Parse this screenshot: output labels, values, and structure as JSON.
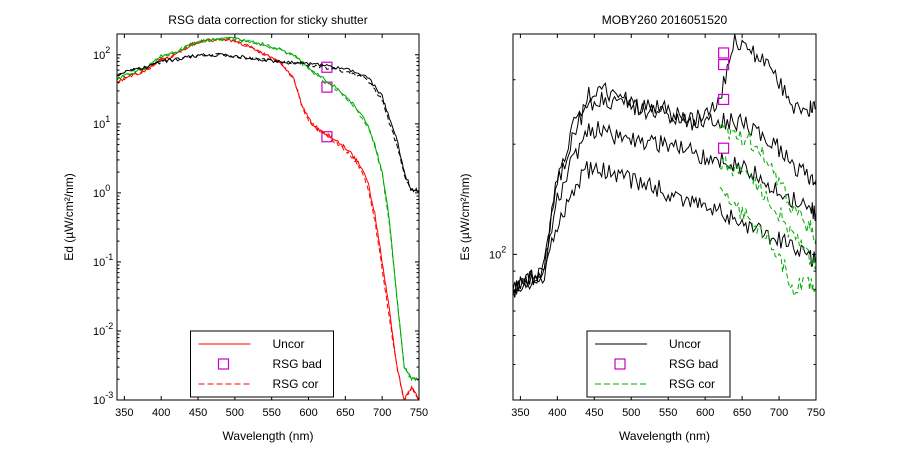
{
  "chart_data": [
    {
      "type": "line",
      "title": "RSG data correction for sticky shutter",
      "xlabel": "Wavelength (nm)",
      "ylabel": "Ed (µW/cm²/nm)",
      "xlim": [
        340,
        750
      ],
      "ylim": [
        0.001,
        200
      ],
      "yscale": "log",
      "x_ticks": [
        350,
        400,
        450,
        500,
        550,
        600,
        650,
        700,
        750
      ],
      "y_ticks": [
        {
          "base": "10",
          "exp": "2",
          "value": 100
        },
        {
          "base": "10",
          "exp": "1",
          "value": 10
        },
        {
          "base": "10",
          "exp": "0",
          "value": 1
        },
        {
          "base": "10",
          "exp": "-1",
          "value": 0.1
        },
        {
          "base": "10",
          "exp": "-2",
          "value": 0.01
        },
        {
          "base": "10",
          "exp": "-3",
          "value": 0.001
        }
      ],
      "grid": false,
      "legend": {
        "placement": "bottom-center",
        "entries": [
          "Uncor",
          "RSG bad",
          "RSG cor"
        ]
      },
      "series": [
        {
          "name": "Uncor",
          "color": "#ff0000",
          "style": "solid",
          "x": [
            340,
            360,
            380,
            400,
            420,
            440,
            460,
            480,
            500,
            520,
            540,
            560,
            580,
            590,
            600,
            610,
            620,
            630,
            640,
            650,
            660,
            670,
            680,
            690,
            700,
            710,
            720,
            730,
            740,
            750
          ],
          "y": [
            40,
            50,
            60,
            85,
            100,
            140,
            160,
            165,
            160,
            130,
            100,
            80,
            45,
            20,
            12,
            9,
            7.5,
            6.5,
            5.5,
            4.5,
            3.5,
            2.5,
            1.5,
            0.5,
            0.1,
            0.02,
            0.003,
            0.001,
            0.0015,
            0.001
          ]
        },
        {
          "name": "RSG bad",
          "color": "#cc00cc",
          "markers": "square",
          "x": [
            625,
            625,
            625
          ],
          "y": [
            66,
            34,
            6.5
          ]
        },
        {
          "name": "RSG cor",
          "color": "#ff0000",
          "style": "dashed",
          "x": [
            340,
            360,
            380,
            400,
            420,
            440,
            460,
            480,
            500,
            520,
            540,
            560,
            580,
            590,
            600,
            610,
            620,
            630,
            640,
            650,
            660,
            670,
            680,
            690,
            700,
            710,
            720,
            730,
            740,
            750
          ],
          "y": [
            40,
            50,
            60,
            85,
            100,
            140,
            160,
            165,
            160,
            130,
            100,
            80,
            45,
            20,
            11,
            8.5,
            7,
            6,
            5,
            4.2,
            3.2,
            2.3,
            1.3,
            0.4,
            0.08,
            0.015,
            0.003,
            0.001,
            0.0015,
            0.001
          ]
        },
        {
          "color": "#00aa00",
          "style": "solid",
          "x": [
            340,
            360,
            380,
            400,
            420,
            440,
            460,
            480,
            500,
            520,
            540,
            560,
            580,
            600,
            620,
            640,
            660,
            680,
            690,
            700,
            710,
            720,
            730,
            740,
            750
          ],
          "y": [
            45,
            55,
            65,
            95,
            110,
            140,
            160,
            170,
            170,
            155,
            140,
            120,
            100,
            65,
            45,
            32,
            20,
            10,
            5,
            2,
            0.4,
            0.03,
            0.003,
            0.002,
            0.002
          ]
        },
        {
          "color": "#00aa00",
          "style": "dashed",
          "x": [
            340,
            360,
            380,
            400,
            420,
            440,
            460,
            480,
            500,
            520,
            540,
            560,
            580,
            600,
            620,
            640,
            660,
            680,
            690,
            700,
            710,
            720,
            730,
            740,
            750
          ],
          "y": [
            45,
            55,
            65,
            95,
            110,
            140,
            160,
            170,
            170,
            155,
            140,
            120,
            98,
            62,
            42,
            30,
            19,
            9.5,
            4.8,
            1.9,
            0.35,
            0.03,
            0.003,
            0.002,
            0.002
          ]
        },
        {
          "color": "#000000",
          "style": "solid",
          "x": [
            340,
            360,
            380,
            400,
            420,
            440,
            460,
            480,
            500,
            520,
            540,
            560,
            580,
            600,
            620,
            640,
            660,
            680,
            700,
            710,
            720,
            730,
            740,
            750
          ],
          "y": [
            50,
            60,
            65,
            80,
            85,
            95,
            100,
            100,
            95,
            90,
            85,
            80,
            78,
            75,
            70,
            65,
            58,
            48,
            25,
            12,
            6,
            2,
            1.1,
            1.1
          ]
        },
        {
          "color": "#000000",
          "style": "dashed",
          "x": [
            340,
            360,
            380,
            400,
            420,
            440,
            460,
            480,
            500,
            520,
            540,
            560,
            580,
            600,
            620,
            640,
            660,
            680,
            700,
            710,
            720,
            730,
            740,
            750
          ],
          "y": [
            50,
            60,
            65,
            80,
            85,
            95,
            100,
            100,
            95,
            90,
            85,
            80,
            76,
            72,
            66,
            60,
            53,
            44,
            22,
            10,
            5,
            1.8,
            1.05,
            1.05
          ]
        }
      ]
    },
    {
      "type": "line",
      "title": "MOBY260  2016051520",
      "xlabel": "Wavelength (nm)",
      "ylabel": "Es (µW/cm²/nm)",
      "xlim": [
        340,
        750
      ],
      "ylim": [
        40,
        400
      ],
      "yscale": "log",
      "x_ticks": [
        350,
        400,
        450,
        500,
        550,
        600,
        650,
        700,
        750
      ],
      "y_ticks": [
        {
          "base": "10",
          "exp": "2",
          "value": 100
        }
      ],
      "grid": false,
      "legend": {
        "placement": "bottom-center",
        "entries": [
          "Uncor",
          "RSG bad",
          "RSG cor"
        ]
      },
      "series": [
        {
          "name": "Uncor",
          "color": "#000000",
          "style": "solid",
          "x": [
            340,
            360,
            380,
            400,
            420,
            440,
            460,
            480,
            500,
            520,
            540,
            560,
            580,
            600,
            620,
            640,
            660,
            680,
            700,
            720,
            740,
            750
          ],
          "y": [
            80,
            85,
            90,
            160,
            220,
            270,
            280,
            270,
            260,
            250,
            250,
            240,
            230,
            230,
            230,
            230,
            225,
            210,
            195,
            175,
            165,
            160
          ]
        },
        {
          "color": "#000000",
          "style": "solid",
          "x": [
            340,
            360,
            380,
            400,
            420,
            440,
            460,
            480,
            500,
            520,
            540,
            560,
            580,
            600,
            620,
            640,
            660,
            680,
            700,
            720,
            740,
            750
          ],
          "y": [
            80,
            85,
            90,
            155,
            210,
            255,
            265,
            260,
            255,
            245,
            245,
            240,
            235,
            240,
            270,
            380,
            360,
            340,
            300,
            250,
            250,
            250
          ]
        },
        {
          "color": "#000000",
          "style": "solid",
          "x": [
            340,
            360,
            380,
            400,
            420,
            440,
            460,
            480,
            500,
            520,
            540,
            560,
            580,
            600,
            620,
            640,
            660,
            680,
            700,
            720,
            740,
            750
          ],
          "y": [
            80,
            85,
            88,
            140,
            180,
            215,
            220,
            210,
            205,
            200,
            200,
            195,
            190,
            185,
            180,
            175,
            170,
            160,
            150,
            140,
            135,
            130
          ]
        },
        {
          "color": "#000000",
          "style": "solid",
          "x": [
            340,
            360,
            380,
            400,
            420,
            440,
            460,
            480,
            500,
            520,
            540,
            560,
            580,
            600,
            620,
            640,
            660,
            680,
            700,
            720,
            740,
            750
          ],
          "y": [
            80,
            85,
            85,
            120,
            150,
            170,
            170,
            165,
            160,
            155,
            150,
            145,
            140,
            135,
            130,
            125,
            120,
            115,
            110,
            105,
            100,
            95
          ]
        },
        {
          "name": "RSG bad",
          "color": "#cc00cc",
          "markers": "square",
          "x": [
            625,
            625,
            625,
            625
          ],
          "y": [
            355,
            330,
            265,
            195
          ]
        },
        {
          "name": "RSG cor",
          "color": "#00aa00",
          "style": "dashed",
          "x": [
            620,
            640,
            660,
            680,
            700,
            720,
            740,
            750
          ],
          "y": [
            220,
            215,
            205,
            185,
            160,
            130,
            120,
            110
          ]
        },
        {
          "color": "#00aa00",
          "style": "dashed",
          "x": [
            620,
            640,
            660,
            680,
            700,
            720,
            740,
            750
          ],
          "y": [
            180,
            170,
            160,
            145,
            130,
            110,
            100,
            95
          ]
        },
        {
          "color": "#00aa00",
          "style": "dashed",
          "x": [
            620,
            640,
            660,
            680,
            700,
            720,
            740,
            750
          ],
          "y": [
            145,
            135,
            125,
            115,
            100,
            80,
            85,
            80
          ]
        }
      ]
    }
  ]
}
